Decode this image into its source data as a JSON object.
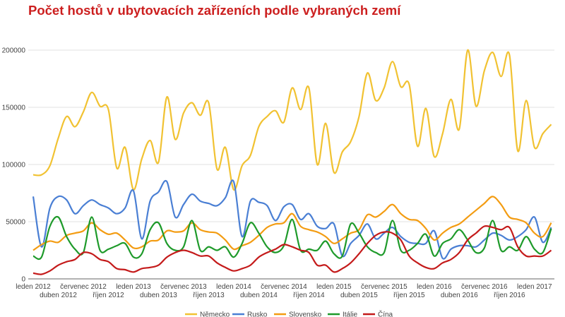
{
  "chart_data": {
    "type": "line",
    "title": "Počet hostů v ubytovacích zařízeních podle vybraných zemí",
    "xlabel": "",
    "ylabel": "",
    "ylim": [
      0,
      200000
    ],
    "yticks": [
      "0",
      "50000",
      "100000",
      "150000",
      "200000"
    ],
    "grid": true,
    "smooth": true,
    "legend_position": "bottom",
    "x_start": "2012-01",
    "x_end": "2017-03",
    "xtick_labels": [
      "leden 2012",
      "duben 2012",
      "červenec 2012",
      "říjen 2012",
      "leden 2013",
      "duben 2013",
      "červenec 2013",
      "říjen 2013",
      "leden 2014",
      "duben 2014",
      "červenec 2014",
      "říjen 2014",
      "leden 2015",
      "duben 2015",
      "červenec 2015",
      "říjen 2015",
      "leden 2016",
      "duben 2016",
      "červenec 2016",
      "říjen 2016",
      "leden 2017"
    ],
    "series": [
      {
        "name": "Německo",
        "color": "#f1c232",
        "values": [
          91000,
          91000,
          99000,
          123000,
          142000,
          133000,
          146000,
          163000,
          151000,
          148000,
          97000,
          115000,
          78000,
          105000,
          121000,
          102000,
          159000,
          122000,
          145000,
          154000,
          143000,
          154000,
          96000,
          115000,
          78000,
          99000,
          108000,
          133000,
          142000,
          147000,
          137000,
          167000,
          148000,
          167000,
          100000,
          136000,
          93000,
          111000,
          120000,
          142000,
          180000,
          156000,
          167000,
          190000,
          168000,
          170000,
          116000,
          149000,
          107000,
          127000,
          157000,
          131000,
          200000,
          151000,
          182000,
          198000,
          177000,
          196000,
          112000,
          156000,
          115000,
          127000,
          135000
        ]
      },
      {
        "name": "Rusko",
        "color": "#4a7fd4",
        "values": [
          72000,
          28000,
          62000,
          72000,
          69000,
          57000,
          64000,
          69000,
          65000,
          62000,
          57000,
          62000,
          77000,
          35000,
          68000,
          76000,
          85000,
          54000,
          65000,
          74000,
          68000,
          66000,
          64000,
          71000,
          85000,
          37000,
          68000,
          67000,
          64000,
          51000,
          63000,
          65000,
          52000,
          57000,
          46000,
          44000,
          48000,
          20000,
          31000,
          38000,
          48000,
          35000,
          40000,
          45000,
          37000,
          32000,
          31000,
          31000,
          42000,
          18000,
          26000,
          29000,
          29000,
          28000,
          34000,
          40000,
          38000,
          34000,
          37000,
          43000,
          54000,
          32000,
          45000
        ]
      },
      {
        "name": "Slovensko",
        "color": "#f39c12",
        "values": [
          25000,
          30000,
          33000,
          32000,
          38000,
          40000,
          42000,
          49000,
          43000,
          39000,
          40000,
          34000,
          27000,
          28000,
          33000,
          34000,
          42000,
          41000,
          42000,
          49000,
          43000,
          41000,
          40000,
          34000,
          26000,
          29000,
          32000,
          38000,
          45000,
          48000,
          49000,
          57000,
          46000,
          43000,
          41000,
          37000,
          31000,
          35000,
          40000,
          43000,
          56000,
          54000,
          59000,
          65000,
          57000,
          52000,
          51000,
          44000,
          34000,
          40000,
          45000,
          48000,
          54000,
          60000,
          66000,
          72000,
          65000,
          54000,
          52000,
          49000,
          40000,
          37000,
          49000
        ]
      },
      {
        "name": "Itálie",
        "color": "#1e9a2a",
        "values": [
          20000,
          19000,
          46000,
          54000,
          37000,
          26000,
          23000,
          54000,
          25000,
          26000,
          29000,
          31000,
          19000,
          22000,
          43000,
          49000,
          31000,
          25000,
          28000,
          51000,
          25000,
          28000,
          25000,
          28000,
          19000,
          31000,
          49000,
          40000,
          28000,
          23000,
          29000,
          52000,
          25000,
          26000,
          25000,
          33000,
          22000,
          20000,
          48000,
          40000,
          28000,
          23000,
          23000,
          51000,
          25000,
          25000,
          31000,
          39000,
          20000,
          31000,
          35000,
          43000,
          34000,
          23000,
          27000,
          51000,
          25000,
          28000,
          25000,
          37000,
          26000,
          23000,
          44000
        ]
      },
      {
        "name": "Čína",
        "color": "#c41a1a",
        "values": [
          5000,
          4000,
          7000,
          12000,
          15000,
          17000,
          23000,
          22000,
          17000,
          15000,
          9000,
          8000,
          6000,
          9000,
          10000,
          12000,
          19000,
          23000,
          25000,
          23000,
          20000,
          20000,
          14000,
          10000,
          7000,
          9000,
          12000,
          19000,
          23000,
          26000,
          30000,
          28000,
          25000,
          23000,
          12000,
          12000,
          6000,
          9000,
          14000,
          22000,
          31000,
          38000,
          41000,
          40000,
          34000,
          20000,
          14000,
          10000,
          9000,
          14000,
          17000,
          23000,
          34000,
          40000,
          46000,
          45000,
          43000,
          45000,
          28000,
          20000,
          20000,
          20000,
          25000
        ]
      }
    ]
  }
}
